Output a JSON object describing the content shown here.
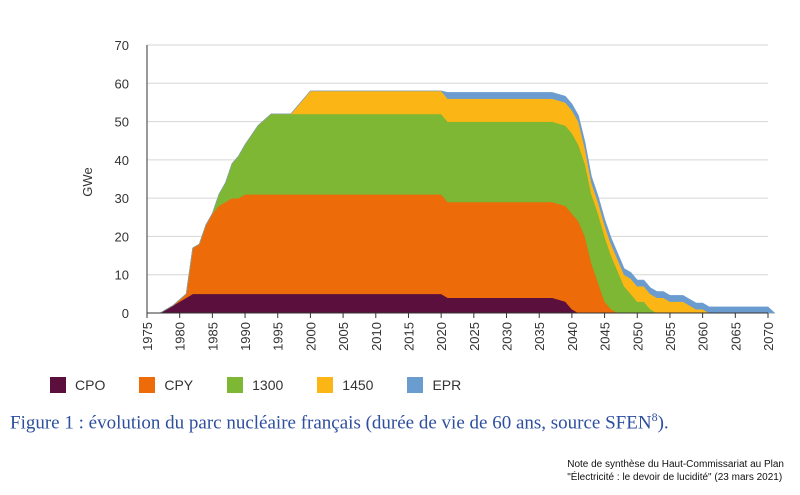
{
  "chart_data": {
    "type": "area",
    "stacked": true,
    "ylabel": "GWe",
    "xlim": [
      1975,
      2070
    ],
    "ylim": [
      0,
      70
    ],
    "x_ticks": [
      1975,
      1980,
      1985,
      1990,
      1995,
      2000,
      2005,
      2010,
      2015,
      2020,
      2025,
      2030,
      2035,
      2040,
      2045,
      2050,
      2055,
      2060,
      2065,
      2070
    ],
    "y_ticks": [
      0,
      10,
      20,
      30,
      40,
      50,
      60,
      70
    ],
    "grid": "horizontal",
    "legend_position": "bottom",
    "x": [
      1977,
      1979,
      1981,
      1982,
      1983,
      1984,
      1985,
      1986,
      1987,
      1988,
      1989,
      1990,
      1992,
      1994,
      1996,
      1997,
      1998,
      1999,
      2000,
      2005,
      2010,
      2015,
      2020,
      2021,
      2025,
      2030,
      2035,
      2037,
      2039,
      2040,
      2041,
      2042,
      2043,
      2044,
      2045,
      2046,
      2047,
      2048,
      2049,
      2050,
      2051,
      2052,
      2053,
      2054,
      2055,
      2056,
      2057,
      2058,
      2059,
      2060,
      2061,
      2062,
      2065,
      2070,
      2071
    ],
    "series": [
      {
        "name": "CPO",
        "color": "#5a0f3c",
        "values": [
          0,
          2,
          4,
          5,
          5,
          5,
          5,
          5,
          5,
          5,
          5,
          5,
          5,
          5,
          5,
          5,
          5,
          5,
          5,
          5,
          5,
          5,
          5,
          4,
          4,
          4,
          4,
          4,
          3,
          1,
          0,
          0,
          0,
          0,
          0,
          0,
          0,
          0,
          0,
          0,
          0,
          0,
          0,
          0,
          0,
          0,
          0,
          0,
          0,
          0,
          0,
          0,
          0,
          0,
          0
        ]
      },
      {
        "name": "CPY",
        "color": "#ed6b09",
        "values": [
          0,
          0,
          1,
          12,
          13,
          18,
          21,
          23,
          24,
          25,
          25,
          26,
          26,
          26,
          26,
          26,
          26,
          26,
          26,
          26,
          26,
          26,
          26,
          25,
          25,
          25,
          25,
          25,
          25,
          25,
          24,
          20,
          13,
          8,
          3,
          1,
          0,
          0,
          0,
          0,
          0,
          0,
          0,
          0,
          0,
          0,
          0,
          0,
          0,
          0,
          0,
          0,
          0,
          0,
          0
        ]
      },
      {
        "name": "1300",
        "color": "#7db733",
        "values": [
          0,
          0,
          0,
          0,
          0,
          0,
          0,
          3,
          5,
          9,
          11,
          13,
          18,
          21,
          21,
          21,
          21,
          21,
          21,
          21,
          21,
          21,
          21,
          21,
          21,
          21,
          21,
          21,
          21,
          21,
          20,
          19,
          18,
          18,
          17,
          14,
          11,
          7,
          5,
          3,
          3,
          1,
          0,
          0,
          0,
          0,
          0,
          0,
          0,
          0,
          0,
          0,
          0,
          0,
          0
        ]
      },
      {
        "name": "1450",
        "color": "#fbb615",
        "values": [
          0,
          0,
          0,
          0,
          0,
          0,
          0,
          0,
          0,
          0,
          0,
          0,
          0,
          0,
          0,
          0,
          2,
          4,
          6,
          6,
          6,
          6,
          6,
          6,
          6,
          6,
          6,
          6,
          6,
          6,
          6,
          4,
          3,
          3,
          3,
          3,
          3,
          3,
          4,
          4,
          4,
          4,
          4,
          4,
          3,
          3,
          3,
          2,
          1,
          1,
          0,
          0,
          0,
          0,
          0
        ]
      },
      {
        "name": "EPR",
        "color": "#6b9ccf",
        "values": [
          0,
          0,
          0,
          0,
          0,
          0,
          0,
          0,
          0,
          0,
          0,
          0,
          0,
          0,
          0,
          0,
          0,
          0,
          0,
          0,
          0,
          0,
          0,
          1.6,
          1.6,
          1.6,
          1.6,
          1.6,
          1.6,
          1.6,
          1.6,
          1.6,
          1.6,
          1.6,
          1.6,
          1.6,
          1.6,
          1.6,
          1.6,
          1.6,
          1.6,
          1.6,
          1.6,
          1.6,
          1.6,
          1.6,
          1.6,
          1.6,
          1.6,
          1.6,
          1.6,
          1.6,
          1.6,
          1.6,
          0
        ]
      }
    ]
  },
  "caption": {
    "text": "Figure 1 : évolution du parc nucléaire français (durée de vie de 60 ans, source SFEN",
    "footnote": "8",
    "end": ")."
  },
  "source_note": {
    "line1": "Note de synthèse du Haut-Commissariat au Plan",
    "line2": "\"Électricité : le devoir de lucidité\" (23 mars 2021)"
  }
}
